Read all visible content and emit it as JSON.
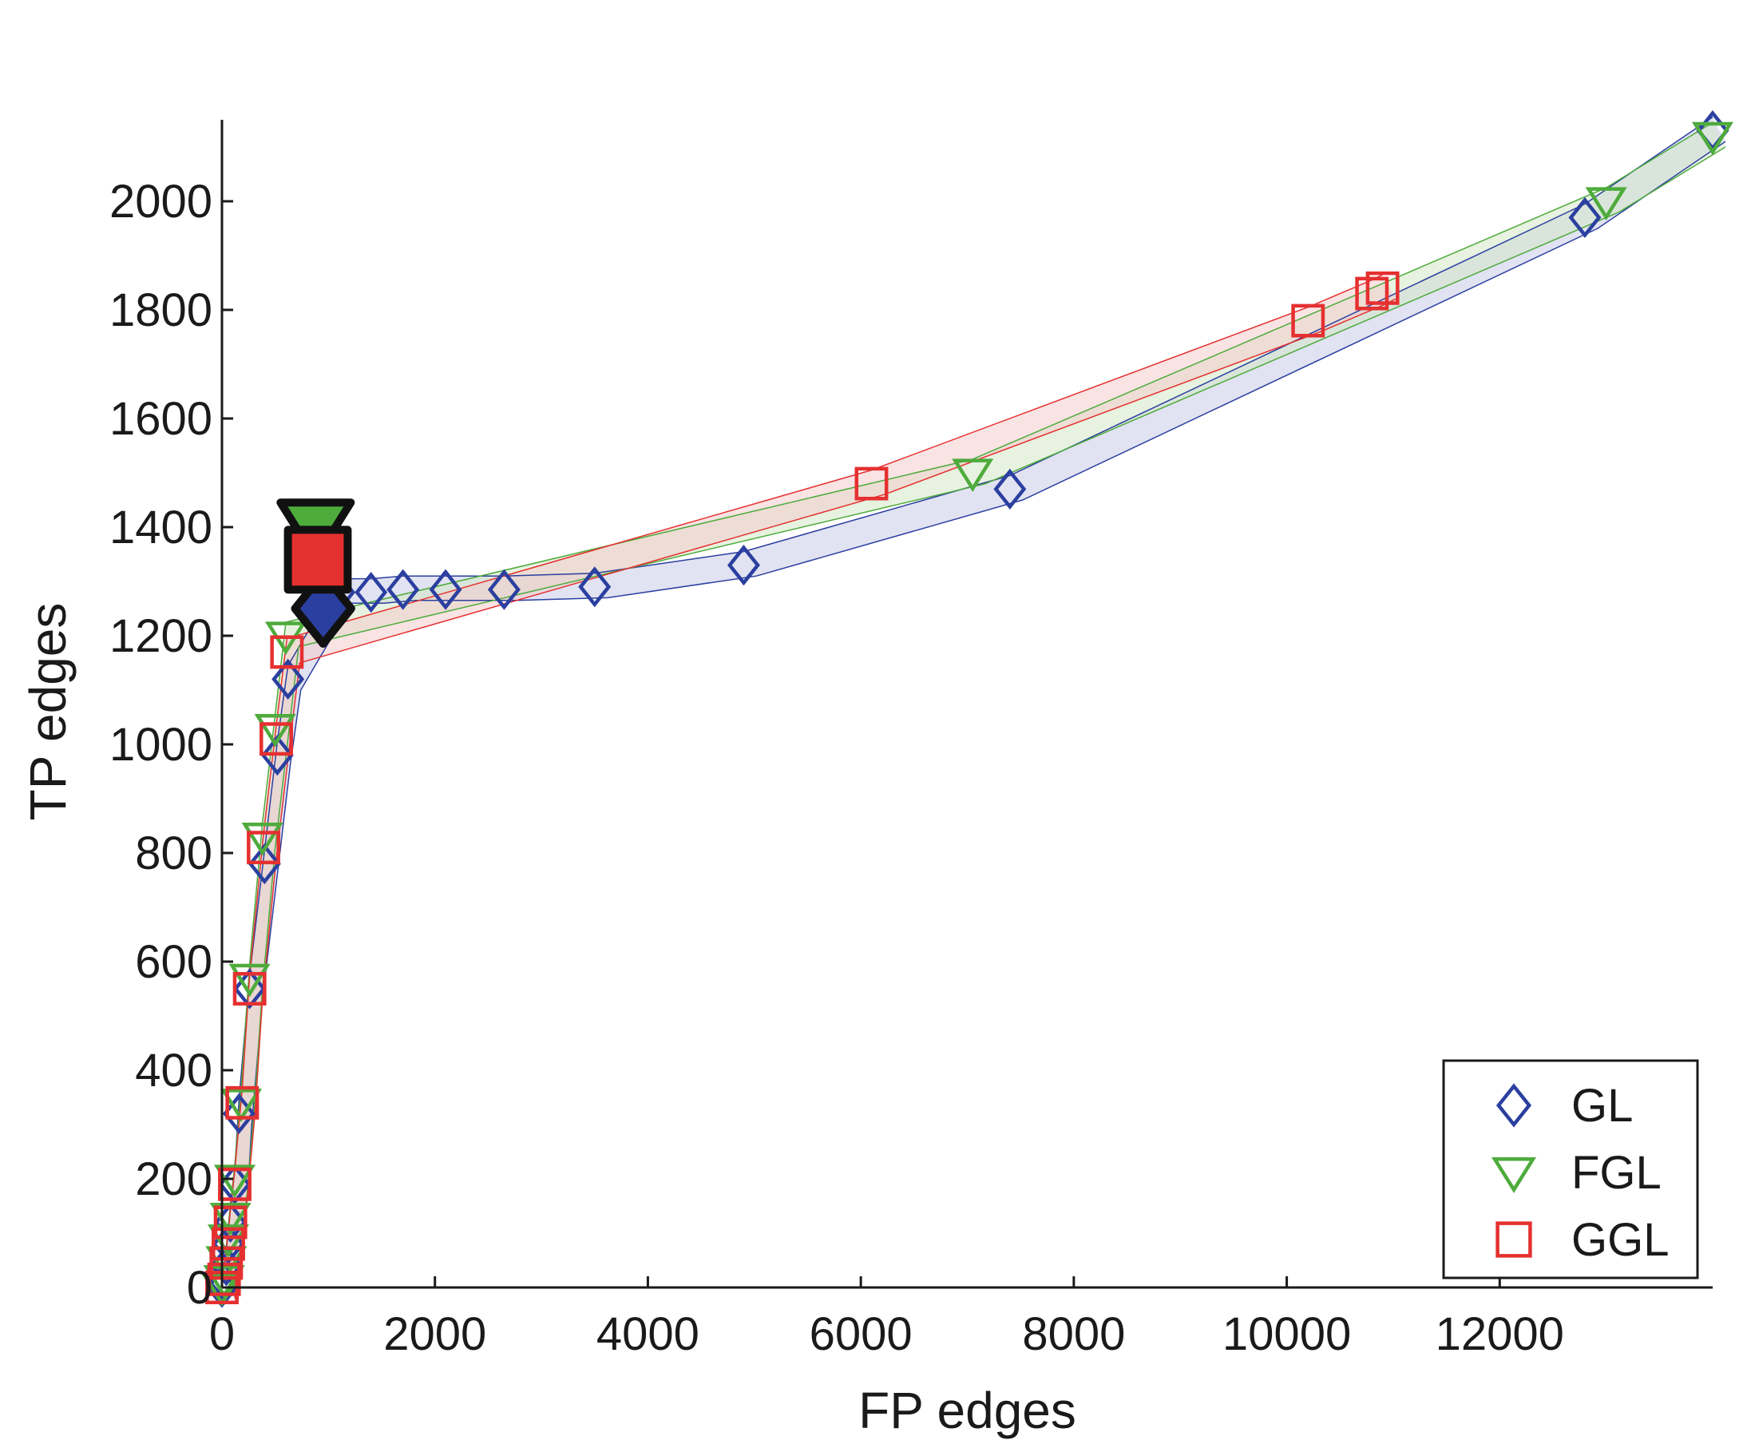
{
  "chart_data": {
    "type": "scatter",
    "title": "",
    "xlabel": "FP edges",
    "ylabel": "TP edges",
    "xlim": [
      0,
      14000
    ],
    "ylim": [
      0,
      2150
    ],
    "xticks": [
      0,
      2000,
      4000,
      6000,
      8000,
      10000,
      12000
    ],
    "yticks": [
      0,
      200,
      400,
      600,
      800,
      1000,
      1200,
      1400,
      1600,
      1800,
      2000
    ],
    "grid": false,
    "legend_position": "bottom-right",
    "series": [
      {
        "name": "GL",
        "marker": "diamond",
        "color": "#2b3fa0",
        "fill": "#c8cbe8",
        "points": [
          [
            0,
            0
          ],
          [
            20,
            10
          ],
          [
            40,
            40
          ],
          [
            60,
            80
          ],
          [
            80,
            120
          ],
          [
            120,
            190
          ],
          [
            160,
            320
          ],
          [
            260,
            550
          ],
          [
            400,
            780
          ],
          [
            520,
            980
          ],
          [
            620,
            1120
          ],
          [
            1100,
            1280
          ],
          [
            1400,
            1280
          ],
          [
            1700,
            1285
          ],
          [
            2100,
            1285
          ],
          [
            2650,
            1285
          ],
          [
            3500,
            1290
          ],
          [
            4900,
            1330
          ],
          [
            7400,
            1470
          ],
          [
            12800,
            1970
          ],
          [
            14000,
            2130
          ]
        ],
        "highlight": [
          950,
          1250
        ]
      },
      {
        "name": "FGL",
        "marker": "triangle-down",
        "color": "#4eab3c",
        "fill": "#d4e8c6",
        "points": [
          [
            0,
            0
          ],
          [
            20,
            15
          ],
          [
            40,
            50
          ],
          [
            60,
            90
          ],
          [
            80,
            130
          ],
          [
            120,
            200
          ],
          [
            180,
            340
          ],
          [
            260,
            570
          ],
          [
            380,
            830
          ],
          [
            500,
            1030
          ],
          [
            600,
            1200
          ],
          [
            7050,
            1500
          ],
          [
            13000,
            2000
          ],
          [
            14000,
            2120
          ]
        ],
        "highlight": [
          880,
          1400
        ]
      },
      {
        "name": "GGL",
        "marker": "square",
        "color": "#e53030",
        "fill": "#f4cccc",
        "points": [
          [
            0,
            0
          ],
          [
            20,
            15
          ],
          [
            40,
            45
          ],
          [
            60,
            80
          ],
          [
            80,
            120
          ],
          [
            120,
            190
          ],
          [
            190,
            340
          ],
          [
            260,
            550
          ],
          [
            390,
            810
          ],
          [
            510,
            1010
          ],
          [
            610,
            1170
          ],
          [
            6100,
            1480
          ],
          [
            10200,
            1780
          ],
          [
            10800,
            1830
          ],
          [
            10900,
            1840
          ]
        ],
        "highlight": [
          900,
          1340
        ]
      }
    ]
  }
}
